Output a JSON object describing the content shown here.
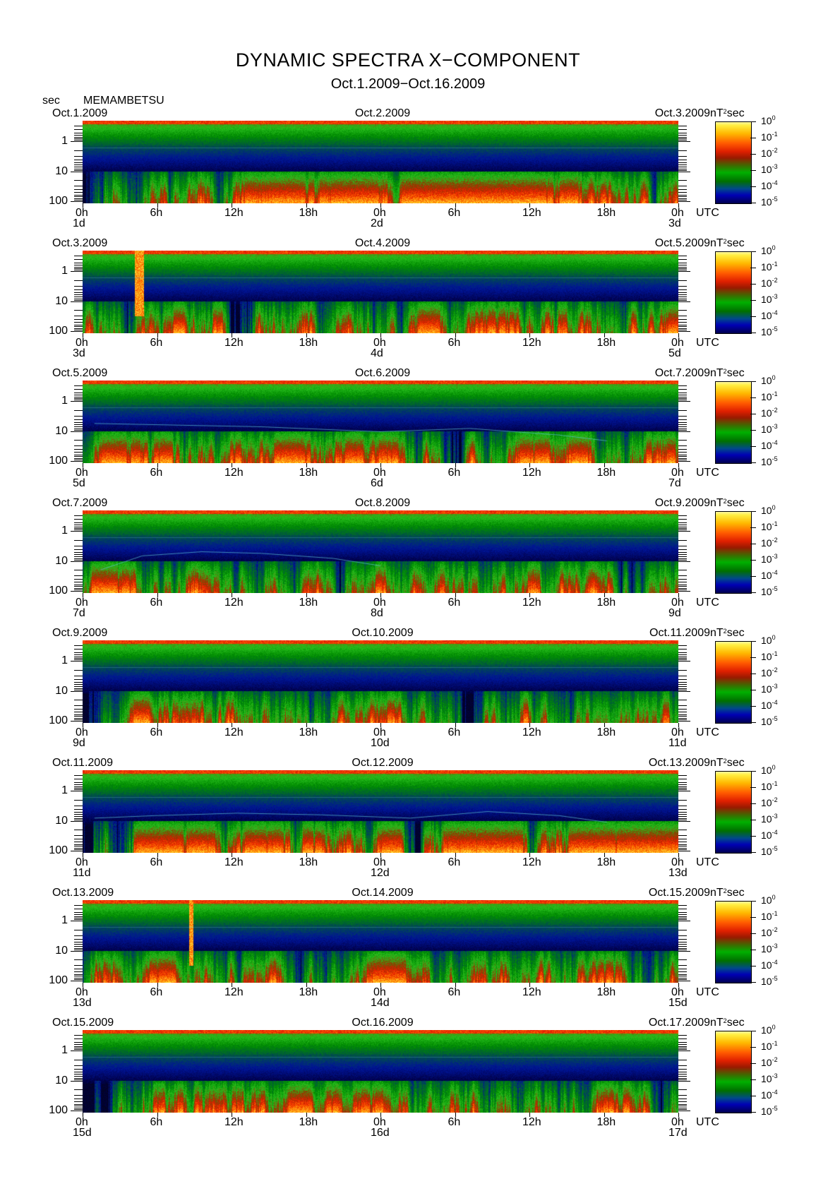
{
  "title": "DYNAMIC SPECTRA X−COMPONENT",
  "subtitle": "Oct.1.2009−Oct.16.2009",
  "y_axis_unit": "sec",
  "station": "MEMAMBETSU",
  "time_unit": "UTC",
  "colorbar": {
    "unit_prefix": "nT",
    "unit_exp": "2",
    "unit_suffix": "sec",
    "labels": [
      {
        "base": "10",
        "exp": "0"
      },
      {
        "base": "10",
        "exp": "-1"
      },
      {
        "base": "10",
        "exp": "-2"
      },
      {
        "base": "10",
        "exp": "-3"
      },
      {
        "base": "10",
        "exp": "-4"
      },
      {
        "base": "10",
        "exp": "-5"
      }
    ],
    "colors": [
      "#000050",
      "#0000b4",
      "#006f00",
      "#00b000",
      "#9a1a00",
      "#e02000",
      "#ff5a00",
      "#ffb800",
      "#ffee40"
    ]
  },
  "chart_data": {
    "type": "heatmap",
    "title": "DYNAMIC SPECTRA X−COMPONENT",
    "subtitle": "Oct.1.2009−Oct.16.2009",
    "ylabel": "sec",
    "xlabel": "UTC",
    "y_scale": "log",
    "y_reversed": true,
    "y_ticks": [
      "1",
      "10",
      "100"
    ],
    "x_ticks": [
      "0h",
      "6h",
      "12h",
      "18h",
      "0h",
      "6h",
      "12h",
      "18h",
      "0h"
    ],
    "color_scale": "log",
    "color_range": [
      "10^-5",
      "10^0"
    ],
    "panels": [
      {
        "left_date": "Oct.1.2009",
        "mid_date": "Oct.2.2009",
        "right_date": "Oct.3.2009",
        "day_labels": [
          "1d",
          "2d",
          "3d"
        ],
        "seed": 11,
        "activity": 0.55,
        "bursts": [
          [
            0.55,
            0.25,
            0.55
          ],
          [
            0.72,
            0.02,
            0.6
          ]
        ],
        "spikes": [],
        "curve": null
      },
      {
        "left_date": "Oct.3.2009",
        "mid_date": "Oct.4.2009",
        "right_date": "Oct.5.2009",
        "day_labels": [
          "3d",
          "4d",
          "5d"
        ],
        "seed": 23,
        "activity": 0.6,
        "bursts": [
          [
            0.59,
            0.02,
            0.7
          ],
          [
            0.005,
            0.02,
            0.55
          ]
        ],
        "spikes": [
          [
            0.095,
            0.008
          ]
        ],
        "curve": null
      },
      {
        "left_date": "Oct.5.2009",
        "mid_date": "Oct.6.2009",
        "right_date": "Oct.7.2009",
        "day_labels": [
          "5d",
          "6d",
          "7d"
        ],
        "seed": 37,
        "activity": 0.6,
        "bursts": [
          [
            0.05,
            0.06,
            0.65
          ],
          [
            0.34,
            0.04,
            0.45
          ]
        ],
        "spikes": [],
        "curve": [
          [
            0.02,
            0.52
          ],
          [
            0.3,
            0.56
          ],
          [
            0.5,
            0.62
          ],
          [
            0.65,
            0.58
          ],
          [
            0.8,
            0.66
          ],
          [
            0.88,
            0.73
          ]
        ]
      },
      {
        "left_date": "Oct.7.2009",
        "mid_date": "Oct.8.2009",
        "right_date": "Oct.9.2009",
        "day_labels": [
          "7d",
          "8d",
          "9d"
        ],
        "seed": 41,
        "activity": 0.5,
        "bursts": [
          [
            0.03,
            0.05,
            0.5
          ],
          [
            0.2,
            0.03,
            0.5
          ],
          [
            0.5,
            0.02,
            0.5
          ]
        ],
        "spikes": [],
        "curve": [
          [
            0.03,
            0.72
          ],
          [
            0.1,
            0.55
          ],
          [
            0.2,
            0.5
          ],
          [
            0.3,
            0.52
          ],
          [
            0.42,
            0.58
          ],
          [
            0.5,
            0.67
          ]
        ]
      },
      {
        "left_date": "Oct.9.2009",
        "mid_date": "Oct.10.2009",
        "right_date": "Oct.11.2009",
        "day_labels": [
          "9d",
          "10d",
          "11d"
        ],
        "seed": 53,
        "activity": 0.5,
        "bursts": [
          [
            0.1,
            0.06,
            0.45
          ],
          [
            0.74,
            0.01,
            0.55
          ]
        ],
        "spikes": [],
        "curve": null
      },
      {
        "left_date": "Oct.11.2009",
        "mid_date": "Oct.12.2009",
        "right_date": "Oct.13.2009",
        "day_labels": [
          "11d",
          "12d",
          "13d"
        ],
        "seed": 67,
        "activity": 0.75,
        "bursts": [
          [
            0.13,
            0.05,
            0.6
          ],
          [
            0.45,
            0.05,
            0.5
          ],
          [
            0.63,
            0.02,
            0.55
          ],
          [
            0.99,
            0.02,
            0.5
          ]
        ],
        "spikes": [],
        "curve": [
          [
            0.02,
            0.58
          ],
          [
            0.12,
            0.55
          ],
          [
            0.26,
            0.52
          ],
          [
            0.4,
            0.54
          ],
          [
            0.55,
            0.58
          ],
          [
            0.68,
            0.5
          ],
          [
            0.8,
            0.55
          ],
          [
            0.88,
            0.63
          ]
        ]
      },
      {
        "left_date": "Oct.13.2009",
        "mid_date": "Oct.14.2009",
        "right_date": "Oct.15.2009",
        "day_labels": [
          "13d",
          "14d",
          "15d"
        ],
        "seed": 79,
        "activity": 0.5,
        "bursts": [
          [
            0.04,
            0.04,
            0.55
          ],
          [
            0.14,
            0.03,
            0.7
          ],
          [
            0.5,
            0.03,
            0.85
          ],
          [
            0.25,
            0.005,
            0.6
          ]
        ],
        "spikes": [
          [
            0.182,
            0.004
          ]
        ],
        "curve": null
      },
      {
        "left_date": "Oct.15.2009",
        "mid_date": "Oct.16.2009",
        "right_date": "Oct.17.2009",
        "day_labels": [
          "15d",
          "16d",
          "17d"
        ],
        "seed": 97,
        "activity": 0.55,
        "bursts": [
          [
            0.36,
            0.02,
            0.6
          ]
        ],
        "spikes": [],
        "curve": null
      }
    ]
  }
}
